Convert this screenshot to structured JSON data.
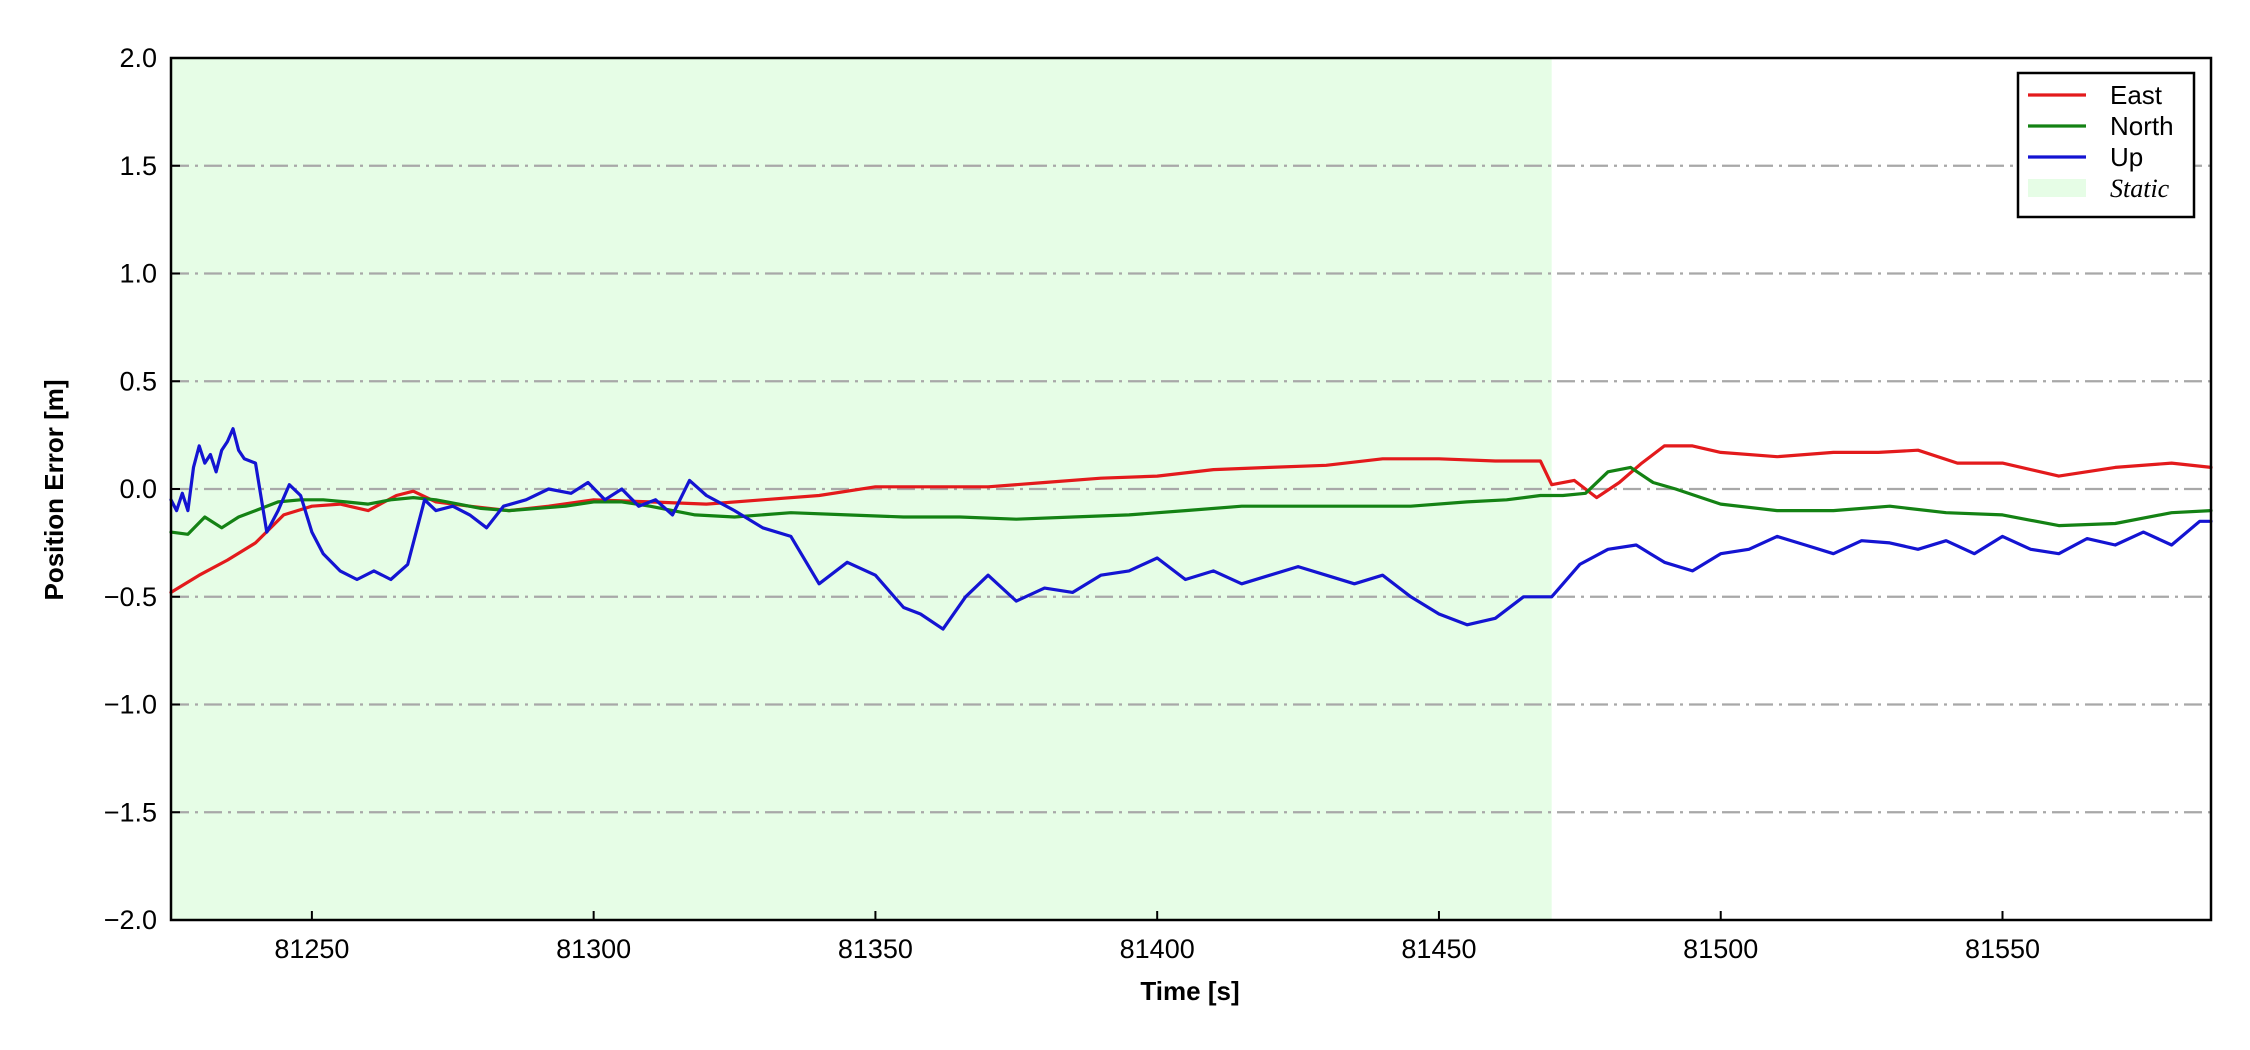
{
  "chart_data": {
    "type": "line",
    "xlabel": "Time [s]",
    "ylabel": "Position Error [m]",
    "xlim": [
      81225,
      81587
    ],
    "ylim": [
      -2.0,
      2.0
    ],
    "x_ticks": [
      81250,
      81300,
      81350,
      81400,
      81450,
      81500,
      81550
    ],
    "y_ticks": [
      -2.0,
      -1.5,
      -1.0,
      -0.5,
      0.0,
      0.5,
      1.0,
      1.5,
      2.0
    ],
    "y_tick_labels": [
      "−2.0",
      "−1.5",
      "−1.0",
      "−0.5",
      "0.0",
      "0.5",
      "1.0",
      "1.5",
      "2.0"
    ],
    "grid": "horizontal dash-dot",
    "legend_position": "top-right",
    "static_region": {
      "label": "Static",
      "x_start": 81225,
      "x_end": 81470,
      "color": "#e6fde6"
    },
    "series": [
      {
        "name": "East",
        "color": "#e31a1c",
        "x": [
          81225,
          81230,
          81235,
          81240,
          81245,
          81250,
          81255,
          81260,
          81265,
          81268,
          81272,
          81278,
          81285,
          81292,
          81300,
          81310,
          81320,
          81330,
          81340,
          81350,
          81360,
          81370,
          81380,
          81390,
          81400,
          81410,
          81420,
          81430,
          81440,
          81450,
          81460,
          81468,
          81470,
          81474,
          81478,
          81482,
          81486,
          81490,
          81495,
          81500,
          81510,
          81520,
          81528,
          81535,
          81542,
          81550,
          81560,
          81570,
          81580,
          81587
        ],
        "y": [
          -0.48,
          -0.4,
          -0.33,
          -0.25,
          -0.12,
          -0.08,
          -0.07,
          -0.1,
          -0.03,
          -0.01,
          -0.06,
          -0.08,
          -0.1,
          -0.08,
          -0.05,
          -0.06,
          -0.07,
          -0.05,
          -0.03,
          0.01,
          0.01,
          0.01,
          0.03,
          0.05,
          0.06,
          0.09,
          0.1,
          0.11,
          0.14,
          0.14,
          0.13,
          0.13,
          0.02,
          0.04,
          -0.04,
          0.03,
          0.12,
          0.2,
          0.2,
          0.17,
          0.15,
          0.17,
          0.17,
          0.18,
          0.12,
          0.12,
          0.06,
          0.1,
          0.12,
          0.1
        ]
      },
      {
        "name": "North",
        "color": "#148214",
        "x": [
          81225,
          81228,
          81231,
          81234,
          81237,
          81240,
          81244,
          81248,
          81252,
          81256,
          81260,
          81264,
          81268,
          81272,
          81276,
          81280,
          81285,
          81290,
          81295,
          81300,
          81305,
          81310,
          81318,
          81325,
          81335,
          81345,
          81355,
          81365,
          81375,
          81385,
          81395,
          81405,
          81415,
          81425,
          81435,
          81445,
          81455,
          81462,
          81468,
          81472,
          81476,
          81480,
          81484,
          81488,
          81492,
          81500,
          81510,
          81520,
          81530,
          81540,
          81550,
          81560,
          81570,
          81580,
          81587
        ],
        "y": [
          -0.2,
          -0.21,
          -0.13,
          -0.18,
          -0.13,
          -0.1,
          -0.06,
          -0.05,
          -0.05,
          -0.06,
          -0.07,
          -0.05,
          -0.04,
          -0.05,
          -0.07,
          -0.09,
          -0.1,
          -0.09,
          -0.08,
          -0.06,
          -0.06,
          -0.08,
          -0.12,
          -0.13,
          -0.11,
          -0.12,
          -0.13,
          -0.13,
          -0.14,
          -0.13,
          -0.12,
          -0.1,
          -0.08,
          -0.08,
          -0.08,
          -0.08,
          -0.06,
          -0.05,
          -0.03,
          -0.03,
          -0.02,
          0.08,
          0.1,
          0.03,
          0.0,
          -0.07,
          -0.1,
          -0.1,
          -0.08,
          -0.11,
          -0.12,
          -0.17,
          -0.16,
          -0.11,
          -0.1
        ]
      },
      {
        "name": "Up",
        "color": "#1414d2",
        "x": [
          81225,
          81226,
          81227,
          81228,
          81229,
          81230,
          81231,
          81232,
          81233,
          81234,
          81235,
          81236,
          81237,
          81238,
          81240,
          81242,
          81244,
          81246,
          81248,
          81250,
          81252,
          81255,
          81258,
          81261,
          81264,
          81267,
          81270,
          81272,
          81275,
          81278,
          81281,
          81284,
          81288,
          81292,
          81296,
          81299,
          81302,
          81305,
          81308,
          81311,
          81314,
          81317,
          81320,
          81325,
          81330,
          81335,
          81340,
          81345,
          81350,
          81355,
          81358,
          81362,
          81366,
          81370,
          81375,
          81380,
          81385,
          81390,
          81395,
          81400,
          81405,
          81410,
          81415,
          81420,
          81425,
          81430,
          81435,
          81440,
          81445,
          81450,
          81455,
          81460,
          81465,
          81470,
          81475,
          81480,
          81485,
          81490,
          81495,
          81500,
          81505,
          81510,
          81515,
          81520,
          81525,
          81530,
          81535,
          81540,
          81545,
          81550,
          81555,
          81560,
          81565,
          81570,
          81575,
          81580,
          81585,
          81587
        ],
        "y": [
          -0.05,
          -0.1,
          -0.02,
          -0.1,
          0.1,
          0.2,
          0.12,
          0.16,
          0.08,
          0.18,
          0.22,
          0.28,
          0.18,
          0.14,
          0.12,
          -0.2,
          -0.1,
          0.02,
          -0.03,
          -0.2,
          -0.3,
          -0.38,
          -0.42,
          -0.38,
          -0.42,
          -0.35,
          -0.05,
          -0.1,
          -0.08,
          -0.12,
          -0.18,
          -0.08,
          -0.05,
          0.0,
          -0.02,
          0.03,
          -0.05,
          0.0,
          -0.08,
          -0.05,
          -0.12,
          0.04,
          -0.03,
          -0.1,
          -0.18,
          -0.22,
          -0.44,
          -0.34,
          -0.4,
          -0.55,
          -0.58,
          -0.65,
          -0.5,
          -0.4,
          -0.52,
          -0.46,
          -0.48,
          -0.4,
          -0.38,
          -0.32,
          -0.42,
          -0.38,
          -0.44,
          -0.4,
          -0.36,
          -0.4,
          -0.44,
          -0.4,
          -0.5,
          -0.58,
          -0.63,
          -0.6,
          -0.5,
          -0.5,
          -0.35,
          -0.28,
          -0.26,
          -0.34,
          -0.38,
          -0.3,
          -0.28,
          -0.22,
          -0.26,
          -0.3,
          -0.24,
          -0.25,
          -0.28,
          -0.24,
          -0.3,
          -0.22,
          -0.28,
          -0.3,
          -0.23,
          -0.26,
          -0.2,
          -0.26,
          -0.15,
          -0.15
        ]
      }
    ]
  }
}
